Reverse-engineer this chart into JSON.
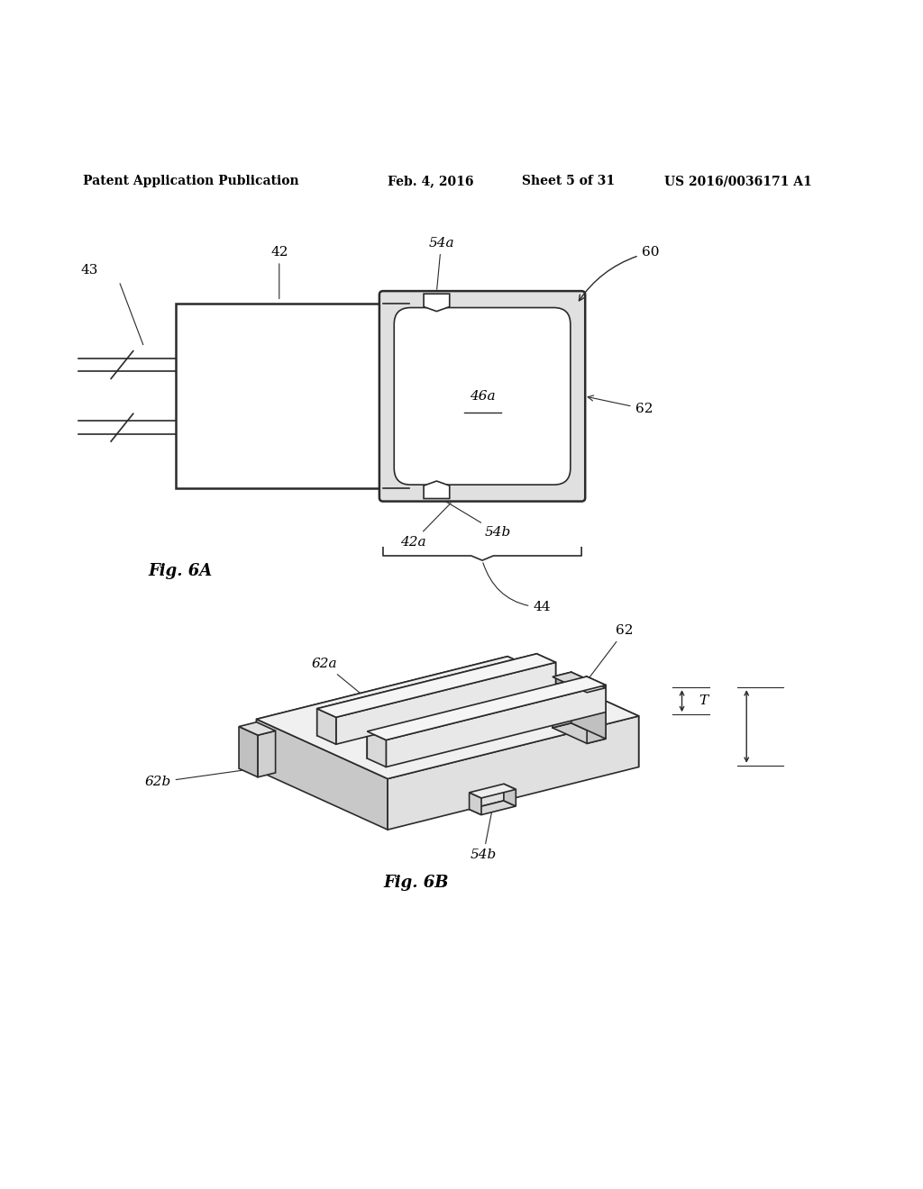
{
  "bg_color": "#ffffff",
  "line_color": "#2a2a2a",
  "header_text": "Patent Application Publication",
  "header_date": "Feb. 4, 2016",
  "header_sheet": "Sheet 5 of 31",
  "header_patent": "US 2016/0036171 A1",
  "fig6a_label": "Fig. 6A",
  "fig6b_label": "Fig. 6B"
}
